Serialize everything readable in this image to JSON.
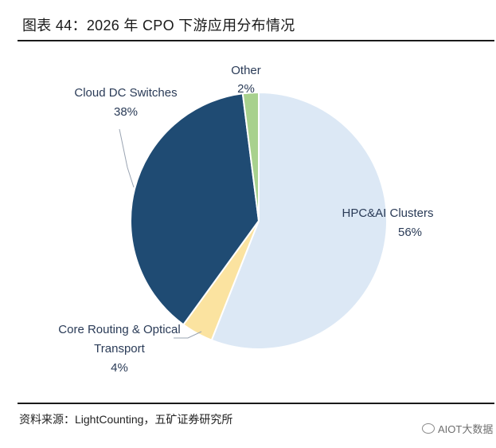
{
  "figure": {
    "title": "图表 44：2026 年 CPO 下游应用分布情况",
    "source": "资料来源：LightCounting，五矿证券研究所",
    "watermark": "AIOT大数据"
  },
  "chart_data": {
    "type": "pie",
    "title": "图表 44：2026 年 CPO 下游应用分布情况",
    "slices": [
      {
        "label": "HPC&AI Clusters",
        "value": 56,
        "display": "56%",
        "color": "#dce8f5"
      },
      {
        "label": "Core Routing & Optical Transport",
        "value": 4,
        "display": "4%",
        "color": "#fbe3a0"
      },
      {
        "label": "Cloud DC Switches",
        "value": 38,
        "display": "38%",
        "color": "#1f4b73"
      },
      {
        "label": "Other",
        "value": 2,
        "display": "2%",
        "color": "#a8d18d"
      }
    ],
    "start_angle": "12 o'clock",
    "direction": "clockwise",
    "legend": "none (direct labels)"
  }
}
